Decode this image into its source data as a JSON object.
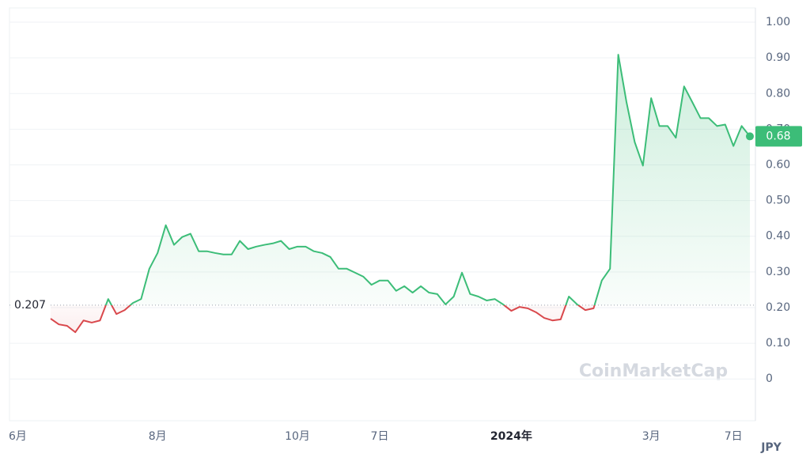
{
  "chart_data": {
    "type": "line",
    "categories": [
      null,
      "6月",
      null,
      null,
      null,
      null,
      null,
      null,
      null,
      null,
      null,
      null,
      null,
      null,
      null,
      null,
      null,
      null,
      "8月",
      null,
      null,
      null,
      null,
      null,
      null,
      null,
      null,
      null,
      null,
      null,
      null,
      null,
      null,
      null,
      null,
      "10月",
      null,
      null,
      null,
      null,
      null,
      null,
      null,
      null,
      null,
      "7日",
      null,
      null,
      null,
      null,
      null,
      null,
      null,
      null,
      null,
      null,
      null,
      null,
      null,
      null,
      null,
      "2024年",
      null,
      null,
      null,
      null,
      null,
      null,
      null,
      null,
      null,
      null,
      null,
      null,
      null,
      null,
      null,
      null,
      "3月",
      null,
      null,
      null,
      null,
      null,
      null,
      null,
      null,
      null,
      "7日",
      null,
      null
    ],
    "series": [
      {
        "name": "JPY",
        "values": [
          null,
          null,
          null,
          null,
          null,
          0.169,
          0.153,
          0.149,
          0.131,
          0.164,
          0.158,
          0.164,
          0.224,
          0.182,
          0.193,
          0.213,
          0.224,
          0.309,
          0.353,
          0.431,
          0.376,
          0.398,
          0.407,
          0.358,
          0.358,
          0.353,
          0.349,
          0.349,
          0.387,
          0.364,
          0.371,
          0.376,
          0.38,
          0.387,
          0.364,
          0.371,
          0.371,
          0.358,
          0.353,
          0.342,
          0.309,
          0.309,
          0.298,
          0.287,
          0.264,
          0.276,
          0.276,
          0.247,
          0.26,
          0.242,
          0.26,
          0.242,
          0.238,
          0.209,
          0.231,
          0.298,
          0.238,
          0.231,
          0.22,
          0.224,
          0.209,
          0.191,
          0.202,
          0.198,
          0.187,
          0.171,
          0.164,
          0.167,
          0.231,
          0.209,
          0.193,
          0.198,
          0.276,
          0.309,
          0.909,
          0.776,
          0.664,
          0.598,
          0.787,
          0.709,
          0.709,
          0.676,
          0.82,
          0.776,
          0.731,
          0.731,
          0.709,
          0.713,
          0.653,
          0.709,
          0.68
        ]
      }
    ],
    "up_color": "#3cbd78",
    "down_color": "#d9484c",
    "baseline": 0.207,
    "current_price": 0.68,
    "ylim": [
      -0.117,
      1.04
    ],
    "yticks": [
      {
        "value": 1,
        "label": "1.00"
      },
      {
        "value": 0.9,
        "label": "0.90"
      },
      {
        "value": 0.8,
        "label": "0.80"
      },
      {
        "value": 0.7,
        "label": "0.70"
      },
      {
        "value": 0.6,
        "label": "0.60"
      },
      {
        "value": 0.5,
        "label": "0.50"
      },
      {
        "value": 0.4,
        "label": "0.40"
      },
      {
        "value": 0.3,
        "label": "0.30"
      },
      {
        "value": 0.2,
        "label": "0.20"
      },
      {
        "value": 0.1,
        "label": "0.10"
      },
      0
    ],
    "grid": true,
    "currency": "JPY",
    "watermark": "CoinMarketCap"
  }
}
